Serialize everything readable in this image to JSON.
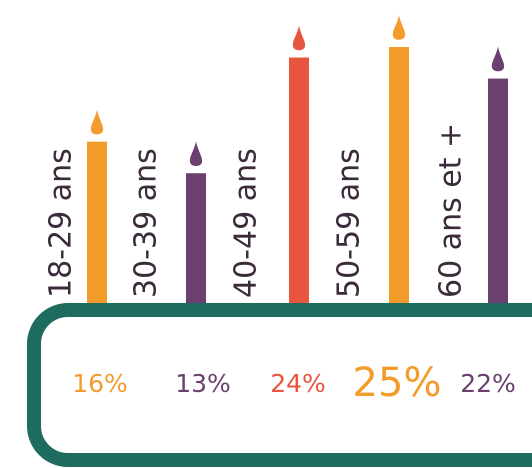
{
  "chart_data": {
    "type": "bar",
    "categories": [
      "18-29 ans",
      "30-39 ans",
      "40-49 ans",
      "50-59 ans",
      "60 ans et +"
    ],
    "values": [
      16,
      13,
      24,
      25,
      22
    ],
    "value_labels": [
      "16%",
      "13%",
      "24%",
      "25%",
      "22%"
    ],
    "colors": [
      "#f39c2c",
      "#6b3f6e",
      "#e8553f",
      "#f39c2c",
      "#6b3f6e"
    ]
  }
}
